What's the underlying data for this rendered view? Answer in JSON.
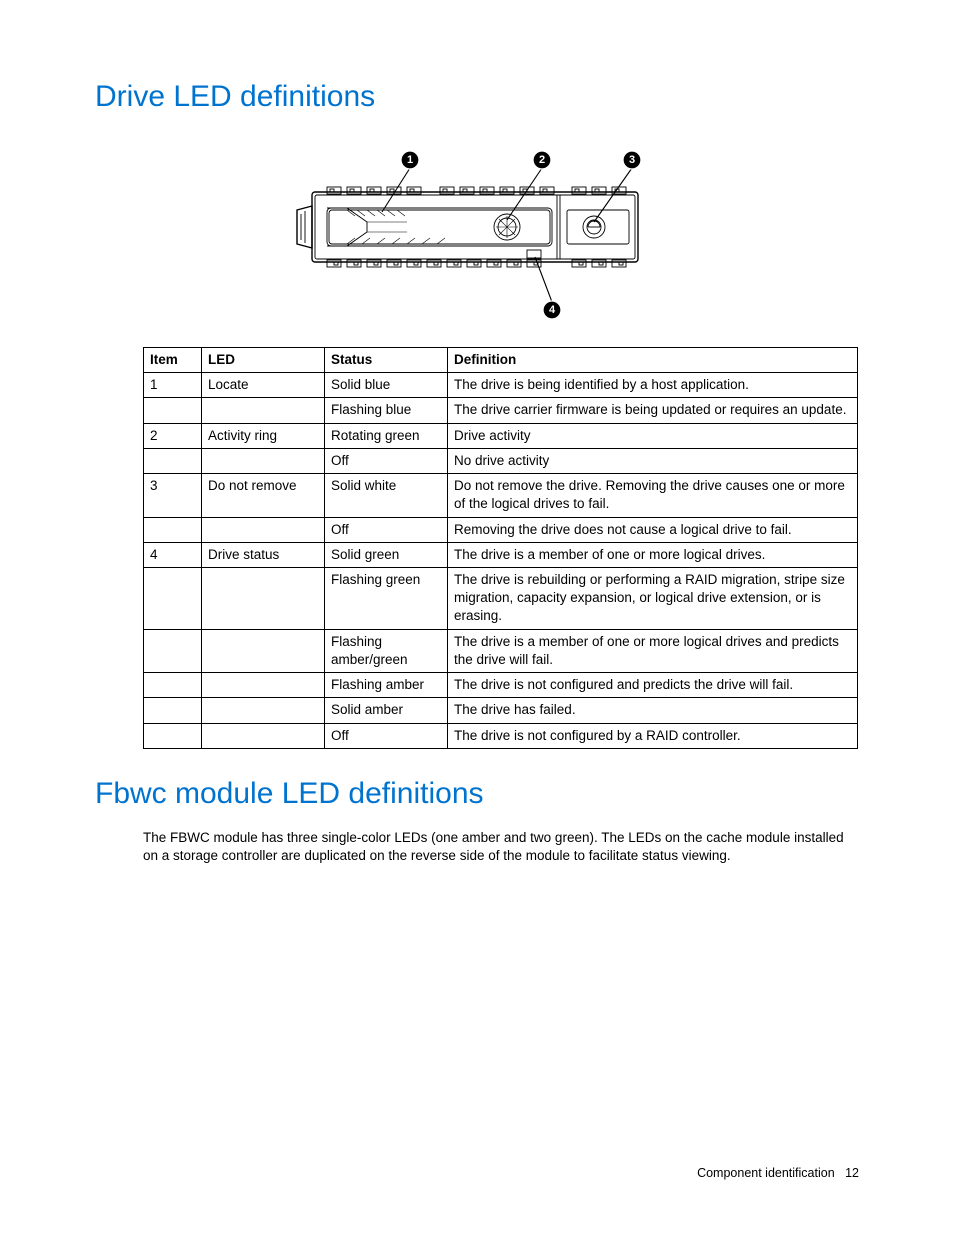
{
  "section1": {
    "title": "Drive LED definitions",
    "title_color": "#0073cf",
    "callouts": [
      "1",
      "2",
      "3",
      "4"
    ],
    "table": {
      "headers": [
        "Item",
        "LED",
        "Status",
        "Definition"
      ],
      "rows": [
        [
          "1",
          "Locate",
          "Solid blue",
          "The drive is being identified by a host application."
        ],
        [
          "",
          "",
          "Flashing blue",
          "The drive carrier firmware is being updated or requires an update."
        ],
        [
          "2",
          "Activity ring",
          "Rotating green",
          "Drive activity"
        ],
        [
          "",
          "",
          "Off",
          "No drive activity"
        ],
        [
          "3",
          "Do not remove",
          "Solid white",
          "Do not remove the drive. Removing the drive causes one or more of the logical drives to fail."
        ],
        [
          "",
          "",
          "Off",
          "Removing the drive does not cause a logical drive to fail."
        ],
        [
          "4",
          "Drive status",
          "Solid green",
          "The drive is a member of one or more logical drives."
        ],
        [
          "",
          "",
          "Flashing green",
          "The drive is rebuilding or performing a RAID migration, stripe size migration, capacity expansion, or logical drive extension, or is erasing."
        ],
        [
          "",
          "",
          "Flashing amber/green",
          "The drive is a member of one or more logical drives and predicts the drive will fail."
        ],
        [
          "",
          "",
          "Flashing amber",
          "The drive is not configured and predicts the drive will fail."
        ],
        [
          "",
          "",
          "Solid amber",
          "The drive has failed."
        ],
        [
          "",
          "",
          "Off",
          "The drive is not configured by a RAID controller."
        ]
      ]
    }
  },
  "section2": {
    "title": "Fbwc module LED definitions",
    "title_color": "#0073cf",
    "body": "The FBWC module has three single-color LEDs (one amber and two green). The LEDs on the cache module installed on a storage controller are duplicated on the reverse side of the module to facilitate status viewing."
  },
  "footer": {
    "text": "Component identification",
    "page": "12"
  }
}
